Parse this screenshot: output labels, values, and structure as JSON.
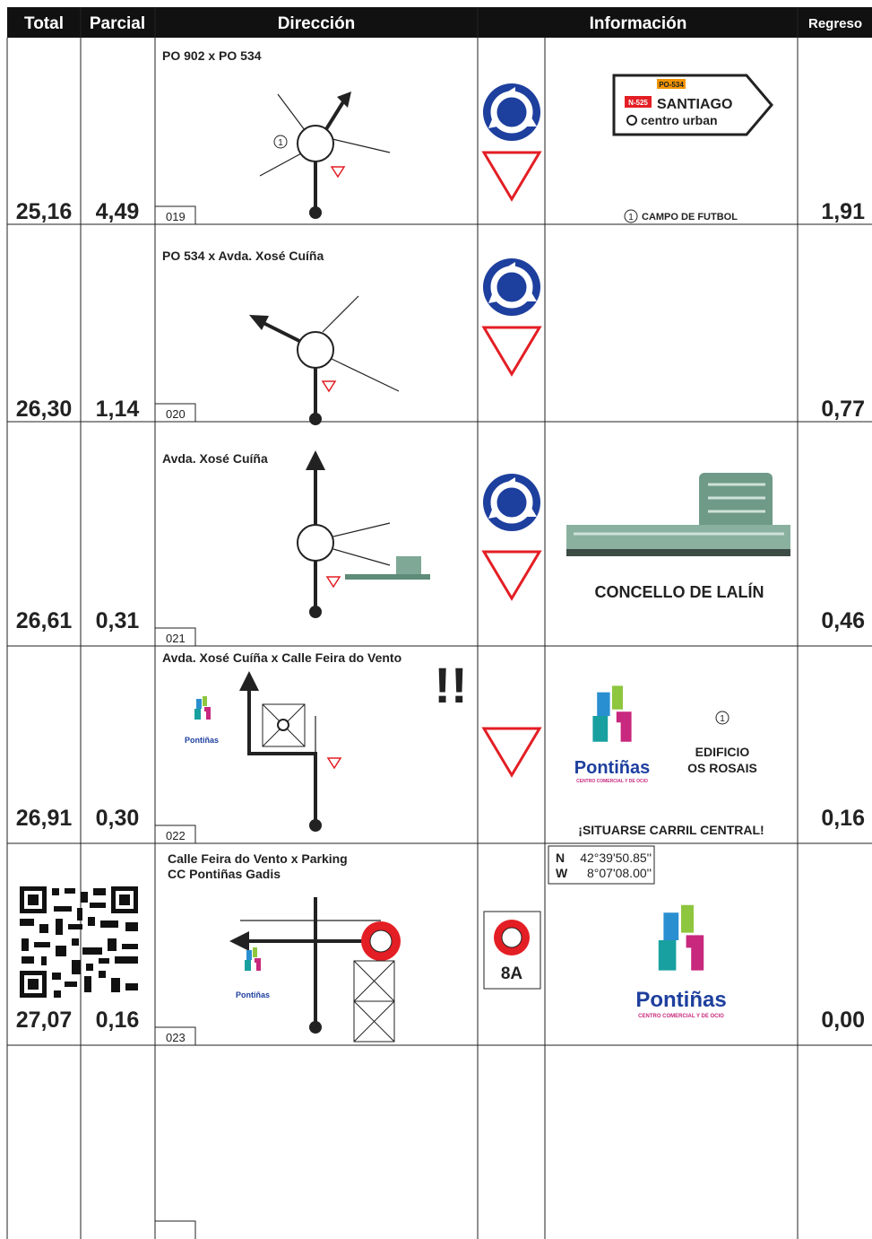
{
  "header": {
    "columns": [
      "Total",
      "Parcial",
      "Dirección",
      "Información",
      "Regreso"
    ]
  },
  "rows": [
    {
      "total": "25,16",
      "partial": "4,49",
      "direction": "PO 902 x PO 534",
      "number": "019",
      "return": "1,91",
      "diagram_marker": "1",
      "sign": {
        "road_ref": "PO-534",
        "national_ref": "N-525",
        "destination": "SANTIAGO",
        "subtitle": "centro urban"
      },
      "info": {
        "marker": "1",
        "text": "CAMPO DE FUTBOL"
      }
    },
    {
      "total": "26,30",
      "partial": "1,14",
      "direction": "PO 534 x Avda. Xosé Cuíña",
      "number": "020",
      "return": "0,77"
    },
    {
      "total": "26,61",
      "partial": "0,31",
      "direction": "Avda. Xosé Cuíña",
      "number": "021",
      "return": "0,46",
      "info": {
        "text": "CONCELLO DE LALÍN"
      }
    },
    {
      "total": "26,91",
      "partial": "0,30",
      "direction": "Avda. Xosé Cuíña x Calle Feira do Vento",
      "number": "022",
      "return": "0,16",
      "warning": "!!",
      "logo": {
        "name": "Pontiñas",
        "tagline": "CENTRO COMERCIAL Y DE OCIO"
      },
      "info": {
        "marker": "1",
        "lines": [
          "EDIFICIO",
          "OS ROSAIS"
        ],
        "note": "¡SITUARSE CARRIL CENTRAL!"
      }
    },
    {
      "total": "27,07",
      "partial": "0,16",
      "direction": [
        "Calle Feira do Vento x Parking",
        "CC Pontiñas Gadis"
      ],
      "number": "023",
      "return": "0,00",
      "coordinates": {
        "lat_label": "N",
        "lat": "42°39'50.85''",
        "lon_label": "W",
        "lon": "8°07'08.00''"
      },
      "sign": {
        "label": "8A"
      }
    }
  ]
}
